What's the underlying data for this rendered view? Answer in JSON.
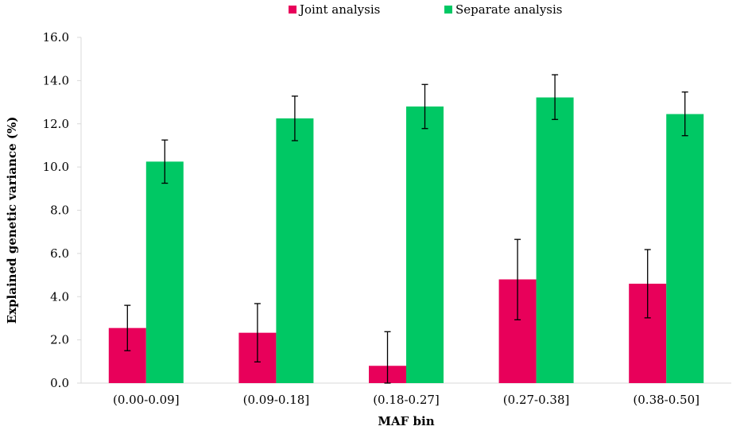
{
  "chart_data": {
    "type": "bar",
    "title": "",
    "xlabel": "MAF bin",
    "ylabel": "Explained genetic variance (%)",
    "categories": [
      "(0.00-0.09]",
      "(0.09-0.18]",
      "(0.18-0.27]",
      "(0.27-0.38]",
      "(0.38-0.50]"
    ],
    "ylim": [
      0,
      16
    ],
    "yticks": [
      "0.0",
      "2.0",
      "4.0",
      "6.0",
      "8.0",
      "10.0",
      "12.0",
      "14.0",
      "16.0"
    ],
    "grid": false,
    "legend_position": "top",
    "series": [
      {
        "name": "Joint analysis",
        "color": "#e8005a",
        "values": [
          2.55,
          2.33,
          0.8,
          4.8,
          4.6
        ],
        "error_low": [
          1.5,
          0.98,
          0.0,
          2.93,
          3.02
        ],
        "error_high": [
          3.6,
          3.68,
          2.38,
          6.65,
          6.18
        ]
      },
      {
        "name": "Separate analysis",
        "color": "#00c864",
        "values": [
          10.25,
          12.25,
          12.8,
          13.22,
          12.45
        ],
        "error_low": [
          9.25,
          11.22,
          11.78,
          12.2,
          11.45
        ],
        "error_high": [
          11.25,
          13.28,
          13.82,
          14.27,
          13.47
        ]
      }
    ]
  }
}
